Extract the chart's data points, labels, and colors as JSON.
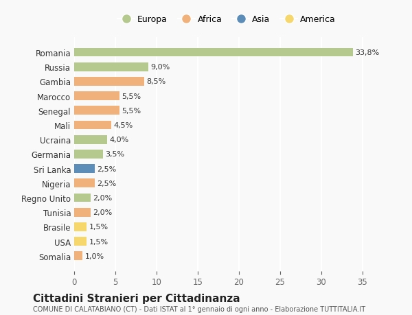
{
  "categories": [
    "Romania",
    "Russia",
    "Gambia",
    "Marocco",
    "Senegal",
    "Mali",
    "Ucraina",
    "Germania",
    "Sri Lanka",
    "Nigeria",
    "Regno Unito",
    "Tunisia",
    "Brasile",
    "USA",
    "Somalia"
  ],
  "values": [
    33.8,
    9.0,
    8.5,
    5.5,
    5.5,
    4.5,
    4.0,
    3.5,
    2.5,
    2.5,
    2.0,
    2.0,
    1.5,
    1.5,
    1.0
  ],
  "labels": [
    "33,8%",
    "9,0%",
    "8,5%",
    "5,5%",
    "5,5%",
    "4,5%",
    "4,0%",
    "3,5%",
    "2,5%",
    "2,5%",
    "2,0%",
    "2,0%",
    "1,5%",
    "1,5%",
    "1,0%"
  ],
  "continents": [
    "Europa",
    "Europa",
    "Africa",
    "Africa",
    "Africa",
    "Africa",
    "Europa",
    "Europa",
    "Asia",
    "Africa",
    "Europa",
    "Africa",
    "America",
    "America",
    "Africa"
  ],
  "continent_colors": {
    "Europa": "#b5c98e",
    "Africa": "#f0b27a",
    "Asia": "#5b8db8",
    "America": "#f5d76e"
  },
  "legend_order": [
    "Europa",
    "Africa",
    "Asia",
    "America"
  ],
  "title": "Cittadini Stranieri per Cittadinanza",
  "subtitle": "COMUNE DI CALATABIANO (CT) - Dati ISTAT al 1° gennaio di ogni anno - Elaborazione TUTTITALIA.IT",
  "xlim": [
    0,
    37
  ],
  "xticks": [
    0,
    5,
    10,
    15,
    20,
    25,
    30,
    35
  ],
  "background_color": "#f9f9f9",
  "grid_color": "#ffffff",
  "bar_height": 0.6
}
